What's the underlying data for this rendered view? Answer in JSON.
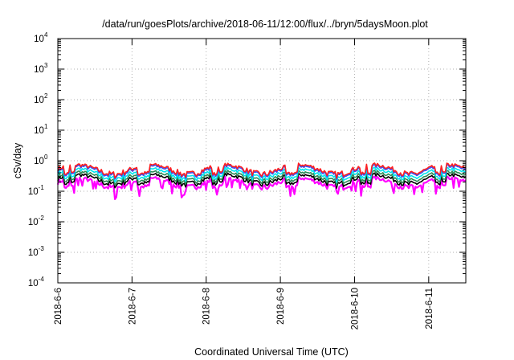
{
  "chart_data": {
    "type": "line",
    "title": "/data/run/goesPlots/archive/2018-06-11/12:00/flux/../bryn/5daysMoon.plot",
    "xlabel": "Coordinated Universal Time (UTC)",
    "ylabel": "cSv/day",
    "yscale": "log",
    "ylim_exponents": [
      -4,
      4
    ],
    "y_ticks": [
      {
        "base": "10",
        "exp": "-4"
      },
      {
        "base": "10",
        "exp": "-3"
      },
      {
        "base": "10",
        "exp": "-2"
      },
      {
        "base": "10",
        "exp": "-1"
      },
      {
        "base": "10",
        "exp": "0"
      },
      {
        "base": "10",
        "exp": "1"
      },
      {
        "base": "10",
        "exp": "2"
      },
      {
        "base": "10",
        "exp": "3"
      },
      {
        "base": "10",
        "exp": "4"
      }
    ],
    "x_ticks": [
      "2018-6-6",
      "2018-6-7",
      "2018-6-8",
      "2018-6-9",
      "2018-6-10",
      "2018-6-11"
    ],
    "x_range_days": [
      0,
      5.5
    ],
    "grid": true,
    "legend": "none",
    "series": [
      {
        "color": "#ff00ff",
        "baseline": 0.2
      },
      {
        "color": "#000000",
        "baseline": 0.26
      },
      {
        "color": "#2e8b57",
        "baseline": 0.32
      },
      {
        "color": "#00e5ee",
        "baseline": 0.4
      },
      {
        "color": "#3050ff",
        "baseline": 0.5
      },
      {
        "color": "#ff2020",
        "baseline": 0.55
      }
    ]
  }
}
